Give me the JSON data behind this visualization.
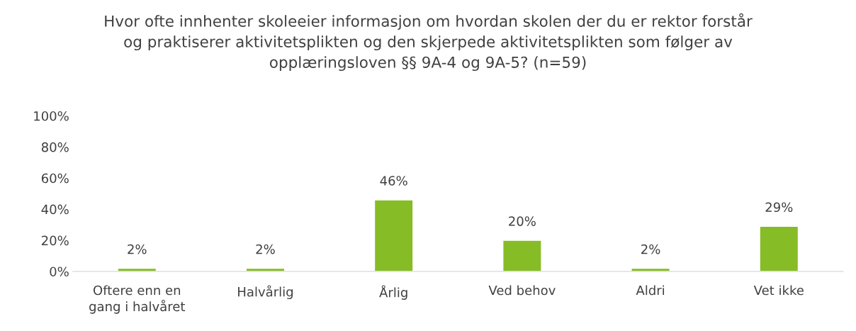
{
  "chart_data": {
    "type": "bar",
    "title": "Hvor ofte innhenter skoleeier informasjon om hvordan skolen der du er rektor forstår og praktiserer aktivitetsplikten og den skjerpede aktivitetsplikten som følger av opplæringsloven §§ 9A-4 og 9A-5? (n=59)",
    "categories": [
      "Oftere enn en gang i halvåret",
      "Halvårlig",
      "Årlig",
      "Ved behov",
      "Aldri",
      "Vet ikke"
    ],
    "values": [
      2,
      2,
      46,
      20,
      2,
      29
    ],
    "value_labels": [
      "2%",
      "2%",
      "46%",
      "20%",
      "2%",
      "29%"
    ],
    "color": "#86bc25",
    "ylim": [
      0,
      100
    ],
    "yticks": [
      {
        "value": 0,
        "label": "0%"
      },
      {
        "value": 20,
        "label": "20%"
      },
      {
        "value": 40,
        "label": "40%"
      },
      {
        "value": 60,
        "label": "60%"
      },
      {
        "value": 80,
        "label": "80%"
      },
      {
        "value": 100,
        "label": "100%"
      }
    ],
    "grid": false
  }
}
